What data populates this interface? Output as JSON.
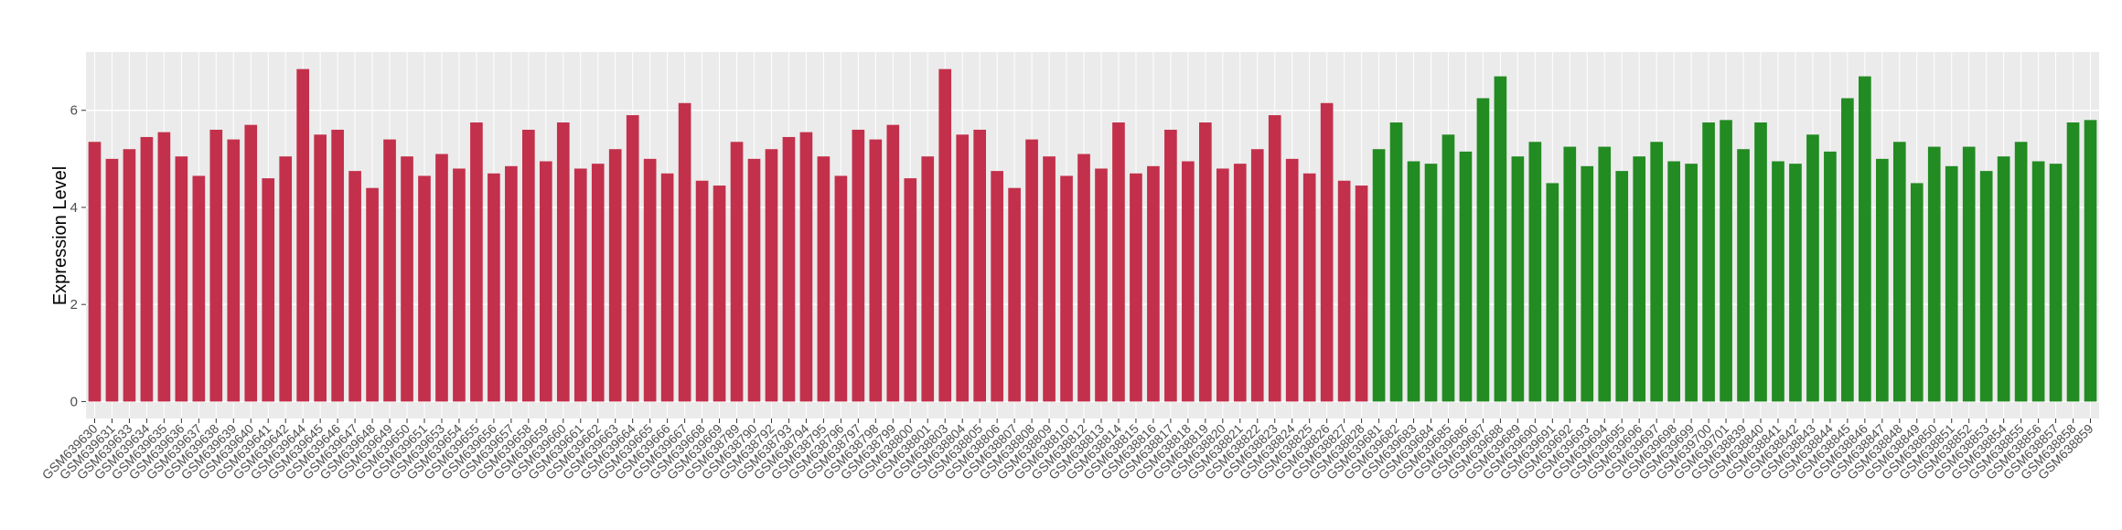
{
  "chart_data": {
    "type": "bar",
    "ylabel": "Expression Level",
    "categories": [
      "GSM639630",
      "GSM639631",
      "GSM639633",
      "GSM639634",
      "GSM639635",
      "GSM639636",
      "GSM639637",
      "GSM639638",
      "GSM639639",
      "GSM639640",
      "GSM639641",
      "GSM639642",
      "GSM639644",
      "GSM639645",
      "GSM639646",
      "GSM639647",
      "GSM639648",
      "GSM639649",
      "GSM639650",
      "GSM639651",
      "GSM639653",
      "GSM639654",
      "GSM639655",
      "GSM639656",
      "GSM639657",
      "GSM639658",
      "GSM639659",
      "GSM639660",
      "GSM639661",
      "GSM639662",
      "GSM639663",
      "GSM639664",
      "GSM639665",
      "GSM639666",
      "GSM639667",
      "GSM639668",
      "GSM639669",
      "GSM638789",
      "GSM638790",
      "GSM638792",
      "GSM638793",
      "GSM638794",
      "GSM638795",
      "GSM638796",
      "GSM638797",
      "GSM638798",
      "GSM638799",
      "GSM638800",
      "GSM638801",
      "GSM638803",
      "GSM638804",
      "GSM638805",
      "GSM638806",
      "GSM638807",
      "GSM638808",
      "GSM638809",
      "GSM638810",
      "GSM638812",
      "GSM638813",
      "GSM638814",
      "GSM638815",
      "GSM638816",
      "GSM638817",
      "GSM638818",
      "GSM638819",
      "GSM638820",
      "GSM638821",
      "GSM638822",
      "GSM638823",
      "GSM638824",
      "GSM638825",
      "GSM638826",
      "GSM638827",
      "GSM638828",
      "GSM639681",
      "GSM639682",
      "GSM639683",
      "GSM639684",
      "GSM639685",
      "GSM639686",
      "GSM639687",
      "GSM639688",
      "GSM639689",
      "GSM639690",
      "GSM639691",
      "GSM639692",
      "GSM639693",
      "GSM639694",
      "GSM639695",
      "GSM639696",
      "GSM639697",
      "GSM639698",
      "GSM639699",
      "GSM639700",
      "GSM639701",
      "GSM638839",
      "GSM638840",
      "GSM638841",
      "GSM638842",
      "GSM638843",
      "GSM638844",
      "GSM638845",
      "GSM638846",
      "GSM638847",
      "GSM638848",
      "GSM638849",
      "GSM638850",
      "GSM638851",
      "GSM638852",
      "GSM638853",
      "GSM638854",
      "GSM638855",
      "GSM638856",
      "GSM638857",
      "GSM638858",
      "GSM638859"
    ],
    "series": [
      {
        "color": "#c3304b",
        "values": [
          5.35,
          5.0,
          5.2,
          5.45,
          5.55,
          5.05,
          4.65,
          5.6,
          5.4,
          5.7,
          4.6,
          5.05,
          6.85,
          5.5,
          5.6,
          4.75,
          4.4,
          5.4,
          5.05,
          4.65,
          5.1,
          4.8,
          5.75,
          4.7,
          4.85,
          5.6,
          4.95,
          5.75,
          4.8,
          4.9,
          5.2,
          5.9,
          5.0,
          4.7,
          6.15,
          4.55,
          4.45,
          5.35,
          5.0,
          5.2,
          5.45,
          5.55,
          5.05,
          4.65,
          5.6,
          5.4,
          5.7,
          4.6,
          5.05,
          6.85,
          5.5,
          5.6,
          4.75,
          4.4,
          5.4,
          5.05,
          4.65,
          5.1,
          4.8,
          5.75,
          4.7,
          4.85,
          5.6,
          4.95,
          5.75,
          4.8,
          4.9,
          5.2,
          5.9,
          5.0,
          4.7,
          6.15,
          4.55,
          4.45,
          null,
          null,
          null,
          null,
          null,
          null,
          null,
          null,
          null,
          null,
          null,
          null,
          null,
          null,
          null,
          null,
          null,
          null,
          null,
          null,
          null,
          null,
          null,
          null,
          null,
          null,
          null,
          null,
          null,
          null,
          null,
          null,
          null,
          null,
          null,
          null,
          null,
          null,
          null,
          null,
          null,
          null
        ]
      },
      {
        "color": "#228b22",
        "values": [
          null,
          null,
          null,
          null,
          null,
          null,
          null,
          null,
          null,
          null,
          null,
          null,
          null,
          null,
          null,
          null,
          null,
          null,
          null,
          null,
          null,
          null,
          null,
          null,
          null,
          null,
          null,
          null,
          null,
          null,
          null,
          null,
          null,
          null,
          null,
          null,
          null,
          null,
          null,
          null,
          null,
          null,
          null,
          null,
          null,
          null,
          null,
          null,
          null,
          null,
          null,
          null,
          null,
          null,
          null,
          null,
          null,
          null,
          null,
          null,
          null,
          null,
          null,
          null,
          null,
          null,
          null,
          null,
          null,
          null,
          null,
          null,
          null,
          null,
          5.2,
          5.75,
          4.95,
          4.9,
          5.5,
          5.15,
          6.25,
          6.7,
          5.05,
          5.35,
          4.5,
          5.25,
          4.85,
          5.25,
          4.75,
          5.05,
          5.35,
          4.95,
          4.9,
          5.75,
          5.8,
          5.2,
          5.75,
          4.95,
          4.9,
          5.5,
          5.15,
          6.25,
          6.7,
          5.0,
          5.35,
          4.5,
          5.25,
          4.85,
          5.25,
          4.75,
          5.05,
          5.35,
          4.95,
          4.9,
          5.75,
          5.8
        ]
      }
    ],
    "ylim": [
      -0.35,
      7.2
    ],
    "yticks": [
      0,
      2,
      4,
      6
    ],
    "grid": true
  }
}
